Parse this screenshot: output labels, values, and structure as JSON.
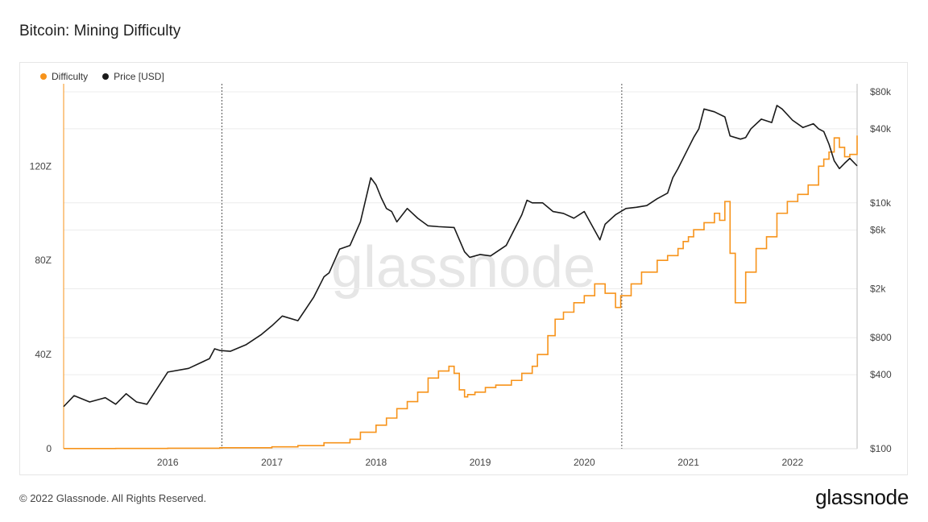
{
  "title": "Bitcoin: Mining Difficulty",
  "footer": "© 2022 Glassnode. All Rights Reserved.",
  "brand": "glassnode",
  "watermark": "glassnode",
  "colors": {
    "difficulty": "#f7931a",
    "price": "#1a1a1a",
    "grid": "#ececec",
    "vline": "#555555"
  },
  "chart_data": {
    "type": "line",
    "legend_placement": "top-left",
    "grid": true,
    "series": [
      {
        "name": "Difficulty",
        "axis": "left",
        "x": [
          2015.0,
          2015.5,
          2016.0,
          2016.5,
          2017.0,
          2017.25,
          2017.5,
          2017.75,
          2017.85,
          2018.0,
          2018.1,
          2018.2,
          2018.3,
          2018.4,
          2018.5,
          2018.6,
          2018.7,
          2018.75,
          2018.8,
          2018.85,
          2018.88,
          2018.95,
          2019.05,
          2019.15,
          2019.3,
          2019.4,
          2019.5,
          2019.55,
          2019.65,
          2019.72,
          2019.8,
          2019.9,
          2020.0,
          2020.1,
          2020.2,
          2020.3,
          2020.35,
          2020.45,
          2020.55,
          2020.7,
          2020.8,
          2020.9,
          2020.95,
          2021.0,
          2021.05,
          2021.15,
          2021.25,
          2021.3,
          2021.35,
          2021.4,
          2021.45,
          2021.5,
          2021.55,
          2021.65,
          2021.75,
          2021.85,
          2021.95,
          2022.05,
          2022.15,
          2022.25,
          2022.3,
          2022.35,
          2022.4,
          2022.45,
          2022.5,
          2022.55,
          2022.62
        ],
        "values": [
          0.05,
          0.1,
          0.2,
          0.4,
          0.8,
          1.3,
          2.5,
          4,
          7,
          10,
          13,
          17,
          20,
          24,
          30,
          33,
          35,
          32,
          25,
          22,
          23,
          24,
          26,
          27,
          29,
          32,
          35,
          40,
          48,
          55,
          58,
          62,
          65,
          70,
          66,
          60,
          65,
          70,
          75,
          80,
          82,
          85,
          88,
          90,
          93,
          96,
          100,
          97,
          105,
          83,
          62,
          62,
          75,
          85,
          90,
          100,
          105,
          108,
          112,
          120,
          123,
          126,
          132,
          128,
          124,
          125,
          133
        ]
      },
      {
        "name": "Price [USD]",
        "axis": "right",
        "x": [
          2015.0,
          2015.1,
          2015.25,
          2015.4,
          2015.5,
          2015.6,
          2015.7,
          2015.8,
          2016.0,
          2016.2,
          2016.4,
          2016.45,
          2016.5,
          2016.6,
          2016.75,
          2016.9,
          2017.0,
          2017.1,
          2017.25,
          2017.4,
          2017.5,
          2017.55,
          2017.65,
          2017.75,
          2017.85,
          2017.95,
          2018.0,
          2018.05,
          2018.1,
          2018.15,
          2018.2,
          2018.3,
          2018.4,
          2018.5,
          2018.6,
          2018.75,
          2018.85,
          2018.9,
          2019.0,
          2019.1,
          2019.25,
          2019.4,
          2019.45,
          2019.5,
          2019.6,
          2019.7,
          2019.8,
          2019.9,
          2020.0,
          2020.15,
          2020.2,
          2020.3,
          2020.4,
          2020.5,
          2020.6,
          2020.7,
          2020.8,
          2020.85,
          2020.9,
          2021.0,
          2021.05,
          2021.1,
          2021.15,
          2021.25,
          2021.35,
          2021.4,
          2021.5,
          2021.55,
          2021.6,
          2021.7,
          2021.8,
          2021.85,
          2021.9,
          2022.0,
          2022.1,
          2022.2,
          2022.25,
          2022.3,
          2022.35,
          2022.4,
          2022.45,
          2022.5,
          2022.55,
          2022.62
        ],
        "values": [
          220,
          270,
          240,
          260,
          230,
          280,
          240,
          230,
          420,
          450,
          540,
          650,
          630,
          620,
          700,
          850,
          1000,
          1200,
          1100,
          1700,
          2500,
          2700,
          4200,
          4500,
          7000,
          16000,
          14000,
          11000,
          9000,
          8500,
          7000,
          9000,
          7500,
          6500,
          6400,
          6300,
          4000,
          3600,
          3800,
          3700,
          4500,
          8000,
          10500,
          10000,
          10000,
          8500,
          8200,
          7500,
          8500,
          5000,
          6700,
          8000,
          9000,
          9200,
          9500,
          10800,
          12000,
          16000,
          19000,
          28000,
          34000,
          40000,
          58000,
          55000,
          50000,
          35000,
          33000,
          34000,
          40000,
          48000,
          45000,
          62000,
          58000,
          47000,
          41000,
          44000,
          40000,
          38000,
          30000,
          22000,
          19000,
          21000,
          23000,
          20000
        ]
      }
    ],
    "x_ticks": [
      2016,
      2017,
      2018,
      2019,
      2020,
      2021,
      2022
    ],
    "x_tick_labels": [
      "2016",
      "2017",
      "2018",
      "2019",
      "2020",
      "2021",
      "2022"
    ],
    "xlim": [
      2015.0,
      2022.62
    ],
    "y_left": {
      "ticks": [
        0,
        40,
        80,
        120
      ],
      "labels": [
        "0",
        "40Z",
        "80Z",
        "120Z"
      ],
      "ylim": [
        0,
        155
      ]
    },
    "y_right": {
      "scale": "log",
      "ticks": [
        100,
        400,
        800,
        2000,
        6000,
        10000,
        40000,
        80000
      ],
      "labels": [
        "$100",
        "$400",
        "$800",
        "$2k",
        "$6k",
        "$10k",
        "$40k",
        "$80k"
      ],
      "ylim": [
        100,
        80000
      ]
    },
    "halving_lines": [
      2016.52,
      2020.36
    ]
  }
}
